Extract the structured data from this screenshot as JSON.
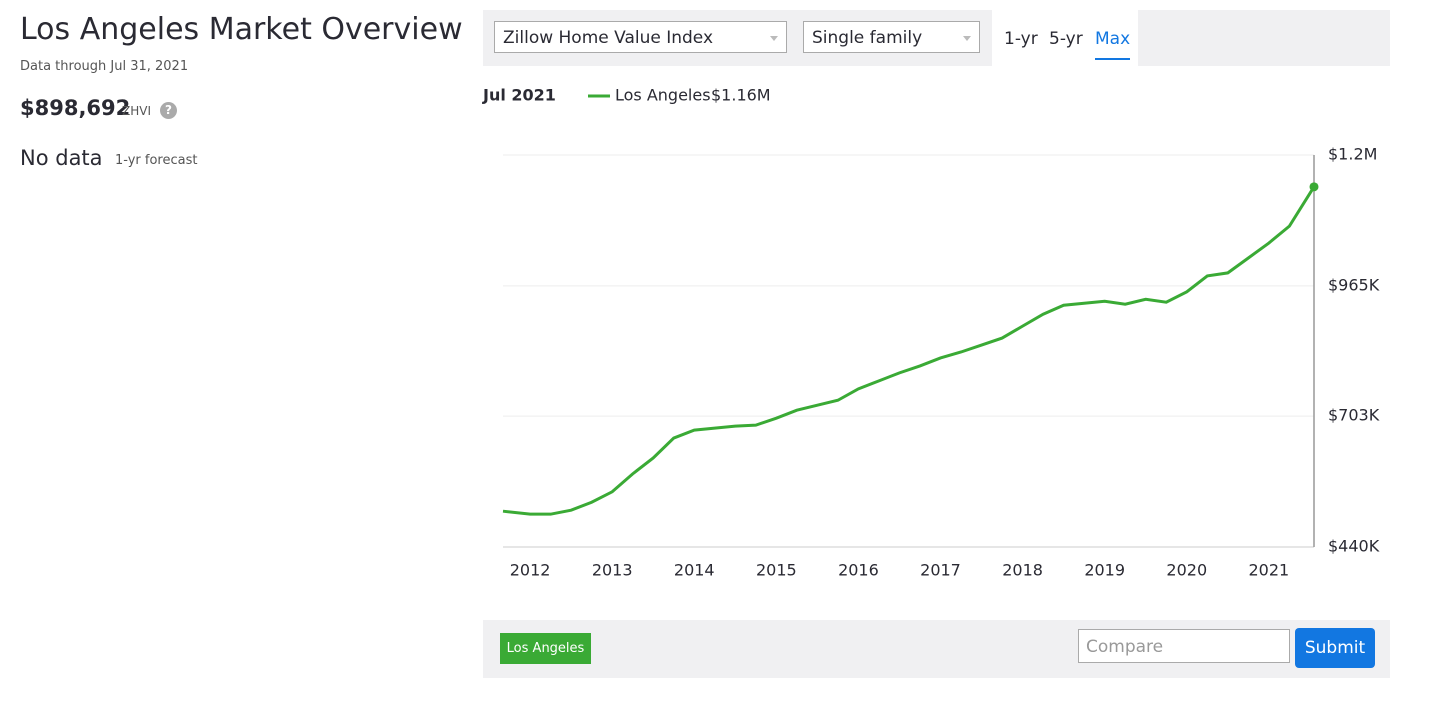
{
  "header": {
    "title": "Los Angeles Market Overview",
    "subtitle": "Data through Jul 31, 2021",
    "zhvi_value": "$898,692",
    "zhvi_label": "ZHVI",
    "help": "?",
    "forecast_value": "No data",
    "forecast_label": "1-yr forecast"
  },
  "controls": {
    "index_select": "Zillow Home Value Index",
    "type_select": "Single family",
    "ranges": [
      "1-yr",
      "5-yr",
      "Max"
    ],
    "active_range": 2
  },
  "chart_data": {
    "type": "line",
    "legend_date": "Jul 2021",
    "legend_value_label": "$1.16M",
    "x": [
      2011.67,
      2012.0,
      2012.25,
      2012.5,
      2012.75,
      2013.0,
      2013.25,
      2013.5,
      2013.75,
      2014.0,
      2014.25,
      2014.5,
      2014.75,
      2015.0,
      2015.25,
      2015.5,
      2015.75,
      2016.0,
      2016.25,
      2016.5,
      2016.75,
      2017.0,
      2017.25,
      2017.5,
      2017.75,
      2018.0,
      2018.25,
      2018.5,
      2018.75,
      2019.0,
      2019.25,
      2019.5,
      2019.75,
      2020.0,
      2020.25,
      2020.5,
      2020.75,
      2021.0,
      2021.25,
      2021.55
    ],
    "series": [
      {
        "name": "Los Angeles",
        "color": "#3aaa35",
        "values": [
          512000,
          506000,
          506000,
          514000,
          530000,
          551000,
          587000,
          619000,
          659000,
          675000,
          679000,
          683000,
          685000,
          699000,
          715000,
          725000,
          735000,
          758000,
          774000,
          790000,
          804000,
          820000,
          832000,
          846000,
          860000,
          884000,
          908000,
          926000,
          930000,
          934000,
          928000,
          938000,
          932000,
          953000,
          985000,
          991000,
          1021000,
          1051000,
          1085000,
          1164000
        ]
      }
    ],
    "xlim": [
      2011.67,
      2021.55
    ],
    "xticks": [
      2012,
      2013,
      2014,
      2015,
      2016,
      2017,
      2018,
      2019,
      2020,
      2021
    ],
    "ylim": [
      440000,
      1228000
    ],
    "yticks": [
      {
        "value": 440000,
        "label": "$440K"
      },
      {
        "value": 703000,
        "label": "$703K"
      },
      {
        "value": 965000,
        "label": "$965K"
      },
      {
        "value": 1228000,
        "label": "$1.2M"
      }
    ],
    "grid": true
  },
  "footer": {
    "compare_placeholder": "Compare",
    "submit": "Submit"
  }
}
